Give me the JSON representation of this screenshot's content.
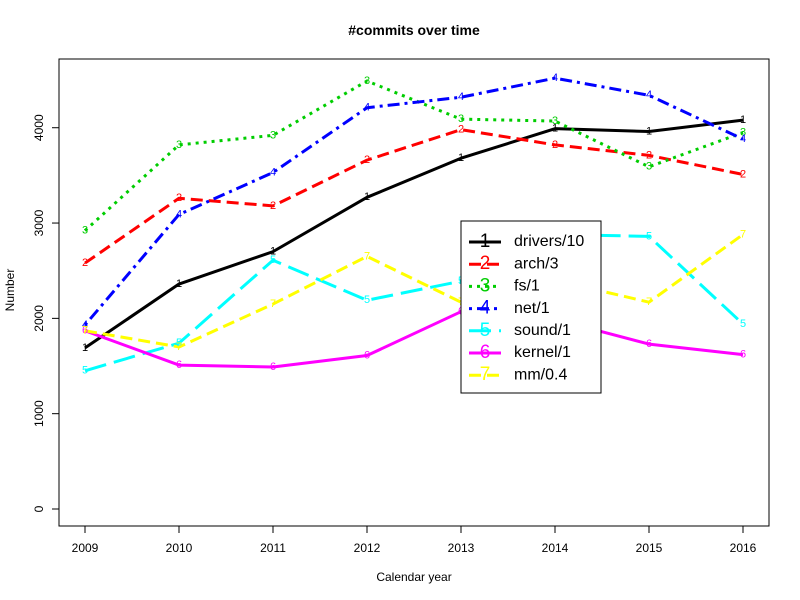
{
  "chart_data": {
    "type": "line",
    "title": "#commits over time",
    "xlabel": "Calendar year",
    "ylabel": "Number",
    "x": [
      2009,
      2010,
      2011,
      2012,
      2013,
      2014,
      2015,
      2016
    ],
    "xlim": [
      2009,
      2016
    ],
    "ylim": [
      0,
      4700
    ],
    "yticks": [
      0,
      1000,
      2000,
      3000,
      4000
    ],
    "grid": false,
    "legend_position": "center-right",
    "series": [
      {
        "name": "drivers/10",
        "marker": "1",
        "color": "#000000",
        "dash": "solid",
        "values": [
          1690,
          2360,
          2700,
          3270,
          3680,
          3990,
          3960,
          4080
        ]
      },
      {
        "name": "arch/3",
        "marker": "2",
        "color": "#ff0000",
        "dash": "dashed",
        "values": [
          2580,
          3260,
          3180,
          3660,
          3980,
          3820,
          3710,
          3510
        ]
      },
      {
        "name": "fs/1",
        "marker": "3",
        "color": "#00cd00",
        "dash": "dotted",
        "values": [
          2920,
          3820,
          3920,
          4490,
          4090,
          4070,
          3590,
          3950
        ]
      },
      {
        "name": "net/1",
        "marker": "4",
        "color": "#0000ff",
        "dash": "dotdash",
        "values": [
          1930,
          3090,
          3530,
          4210,
          4320,
          4520,
          4340,
          3880
        ]
      },
      {
        "name": "sound/1",
        "marker": "5",
        "color": "#00ffff",
        "dash": "longdash",
        "values": [
          1450,
          1740,
          2610,
          2190,
          2390,
          2880,
          2860,
          1940
        ]
      },
      {
        "name": "kernel/1",
        "marker": "6",
        "color": "#ff00ff",
        "dash": "solid",
        "values": [
          1870,
          1510,
          1490,
          1610,
          2070,
          1990,
          1730,
          1620
        ]
      },
      {
        "name": "mm/0.4",
        "marker": "7",
        "color": "#ffff00",
        "dash": "dashed",
        "values": [
          1870,
          1700,
          2150,
          2650,
          2170,
          2400,
          2170,
          2880
        ]
      }
    ]
  }
}
